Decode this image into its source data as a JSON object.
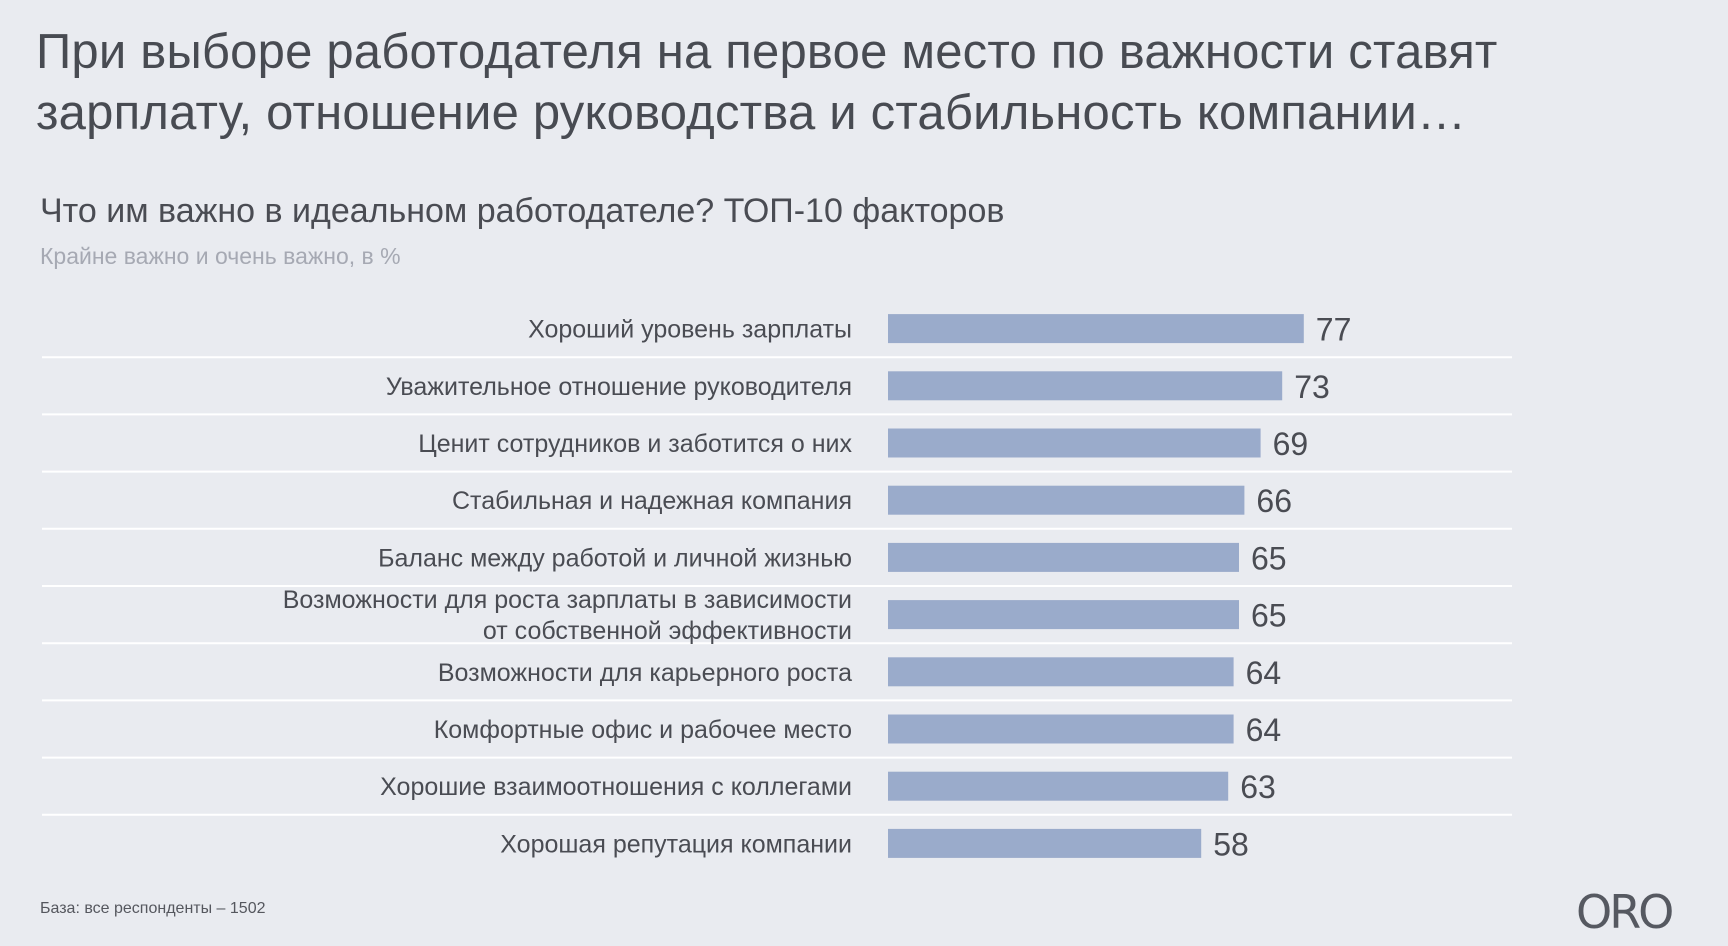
{
  "slide": {
    "title": "При выборе работодателя на первое место по важности ставят зарплату, отношение руководства и стабильность компании…",
    "footnote": "База: все респонденты – 1502",
    "logo": "ORO"
  },
  "chart_data": {
    "type": "bar",
    "orientation": "horizontal",
    "title": "Что им важно в идеальном работодателе? ТОП-10 факторов",
    "subtitle": "Крайне важно и очень важно, в %",
    "categories": [
      "Хороший уровень зарплаты",
      "Уважительное отношение руководителя",
      "Ценит сотрудников и заботится о них",
      "Стабильная и надежная компания",
      "Баланс между работой и личной жизнью",
      "Возможности для роста зарплаты в зависимости от собственной эффективности",
      "Возможности для карьерного роста",
      "Комфортные офис и рабочее место",
      "Хорошие взаимоотношения с коллегами",
      "Хорошая репутация компании"
    ],
    "category_lines": [
      [
        "Хороший уровень зарплаты"
      ],
      [
        "Уважительное отношение руководителя"
      ],
      [
        "Ценит сотрудников и заботится о них"
      ],
      [
        "Стабильная и надежная компания"
      ],
      [
        "Баланс между работой и личной жизнью"
      ],
      [
        "Возможности для роста зарплаты в зависимости",
        "от собственной эффективности"
      ],
      [
        "Возможности для карьерного роста"
      ],
      [
        "Комфортные офис и рабочее место"
      ],
      [
        "Хорошие взаимоотношения с коллегами"
      ],
      [
        "Хорошая репутация компании"
      ]
    ],
    "values": [
      77,
      73,
      69,
      66,
      65,
      65,
      64,
      64,
      63,
      58
    ],
    "xlim": [
      0,
      100
    ],
    "grid": false,
    "legend": "none",
    "bar_color": "#9aabcb",
    "separator_color": "#ffffff"
  }
}
